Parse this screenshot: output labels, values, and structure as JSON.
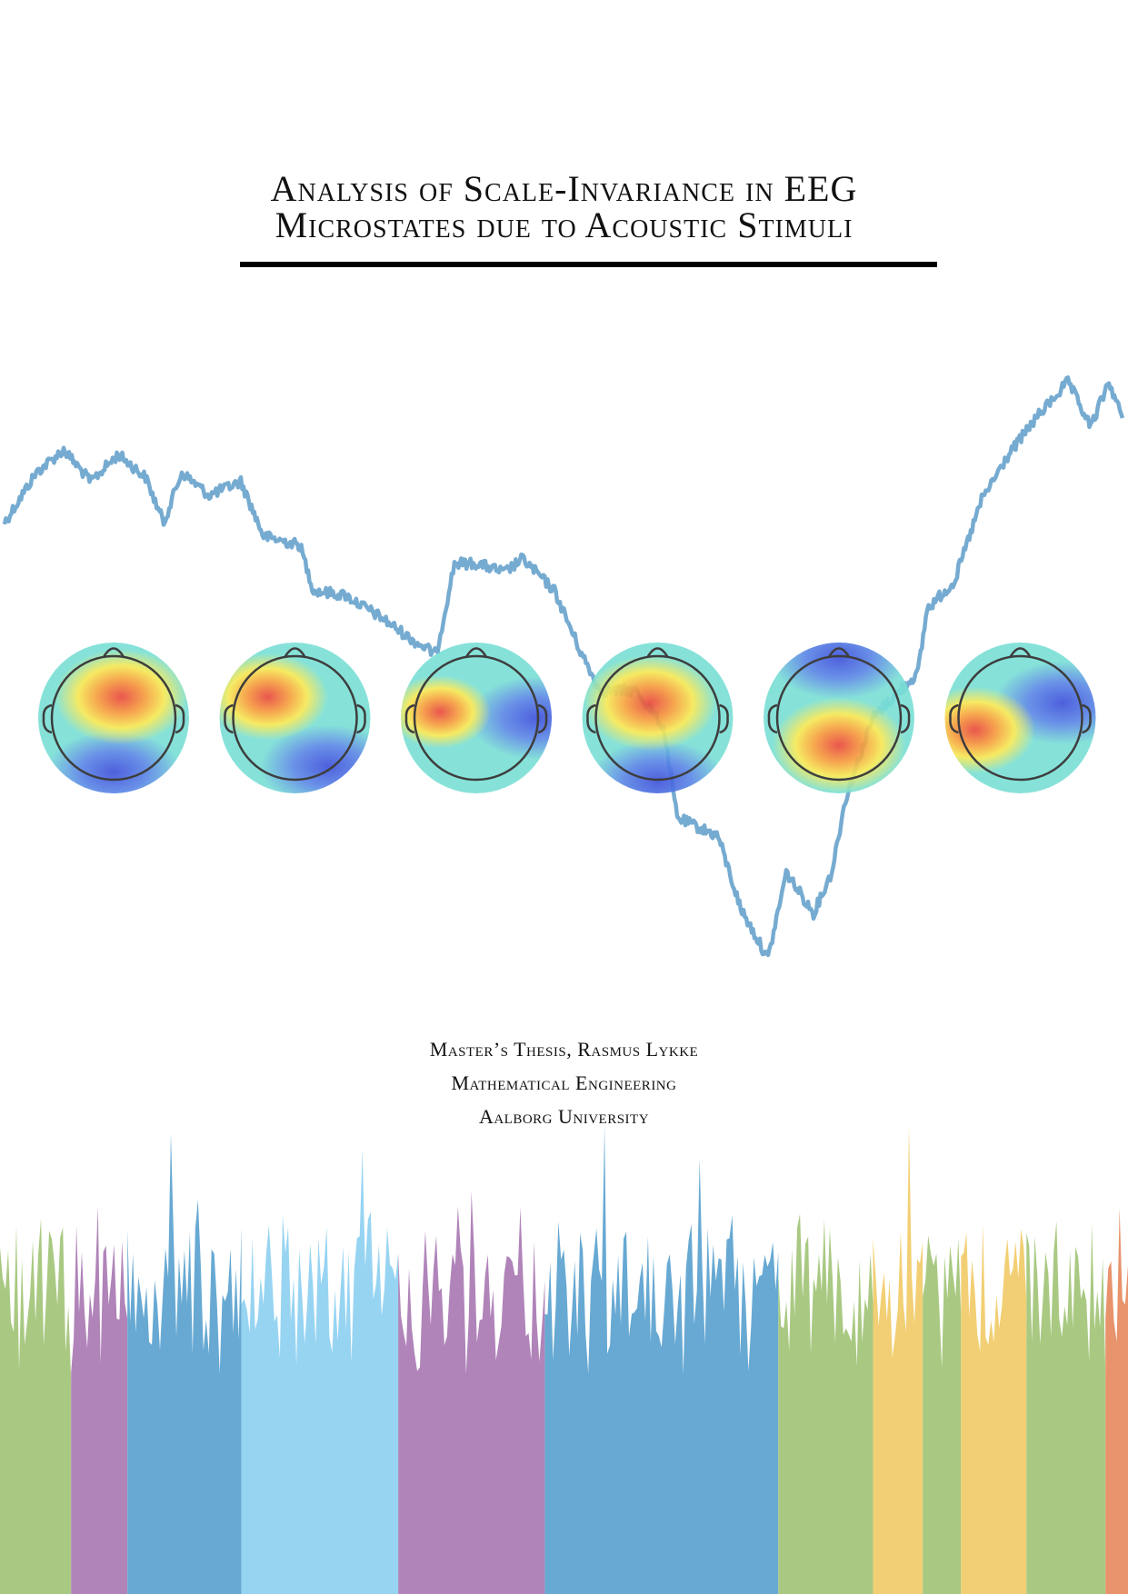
{
  "title": {
    "line1": "Analysis of Scale-Invariance in EEG",
    "line2": "Microstates due to Acoustic Stimuli"
  },
  "byline": {
    "thesis": "Master’s Thesis, Rasmus Lykke",
    "programme": "Mathematical Engineering",
    "university": "Aalborg University"
  },
  "colors": {
    "walk": "#6fa7cf",
    "green": "#a9c982",
    "purple": "#b084b9",
    "blue": "#67a9d3",
    "light_blue": "#97d4f2",
    "yellow": "#f2cf74",
    "orange": "#e8936c",
    "head_outline": "#3d3d3d"
  },
  "topomaps": [
    {
      "name": "map-1",
      "hot": [
        0.55,
        0.36
      ],
      "cold": [
        0.5,
        0.86
      ],
      "hot_r": 0.55,
      "base": "cyan"
    },
    {
      "name": "map-2",
      "hot": [
        0.32,
        0.36
      ],
      "cold": [
        0.72,
        0.82
      ],
      "hot_r": 0.5,
      "base": "cyan"
    },
    {
      "name": "map-3",
      "hot": [
        0.26,
        0.46
      ],
      "cold": [
        0.9,
        0.5
      ],
      "hot_r": 0.42,
      "base": "cyan"
    },
    {
      "name": "map-4",
      "hot": [
        0.45,
        0.4
      ],
      "cold": [
        0.5,
        0.92
      ],
      "hot_r": 0.55,
      "base": "cyan"
    },
    {
      "name": "map-5",
      "hot": [
        0.5,
        0.68
      ],
      "cold": [
        0.5,
        0.1
      ],
      "hot_r": 0.55,
      "base": "cyan"
    },
    {
      "name": "map-6",
      "hot": [
        0.2,
        0.58
      ],
      "cold": [
        0.78,
        0.4
      ],
      "hot_r": 0.5,
      "base": "cyan"
    }
  ],
  "bar_segments": [
    {
      "color": "green",
      "share": 0.063
    },
    {
      "color": "purple",
      "share": 0.05
    },
    {
      "color": "blue",
      "share": 0.101
    },
    {
      "color": "light_blue",
      "share": 0.139
    },
    {
      "color": "purple",
      "share": 0.13
    },
    {
      "color": "blue",
      "share": 0.207
    },
    {
      "color": "green",
      "share": 0.084
    },
    {
      "color": "yellow",
      "share": 0.044
    },
    {
      "color": "green",
      "share": 0.034
    },
    {
      "color": "yellow",
      "share": 0.058
    },
    {
      "color": "green",
      "share": 0.07
    },
    {
      "color": "orange",
      "share": 0.02
    }
  ]
}
